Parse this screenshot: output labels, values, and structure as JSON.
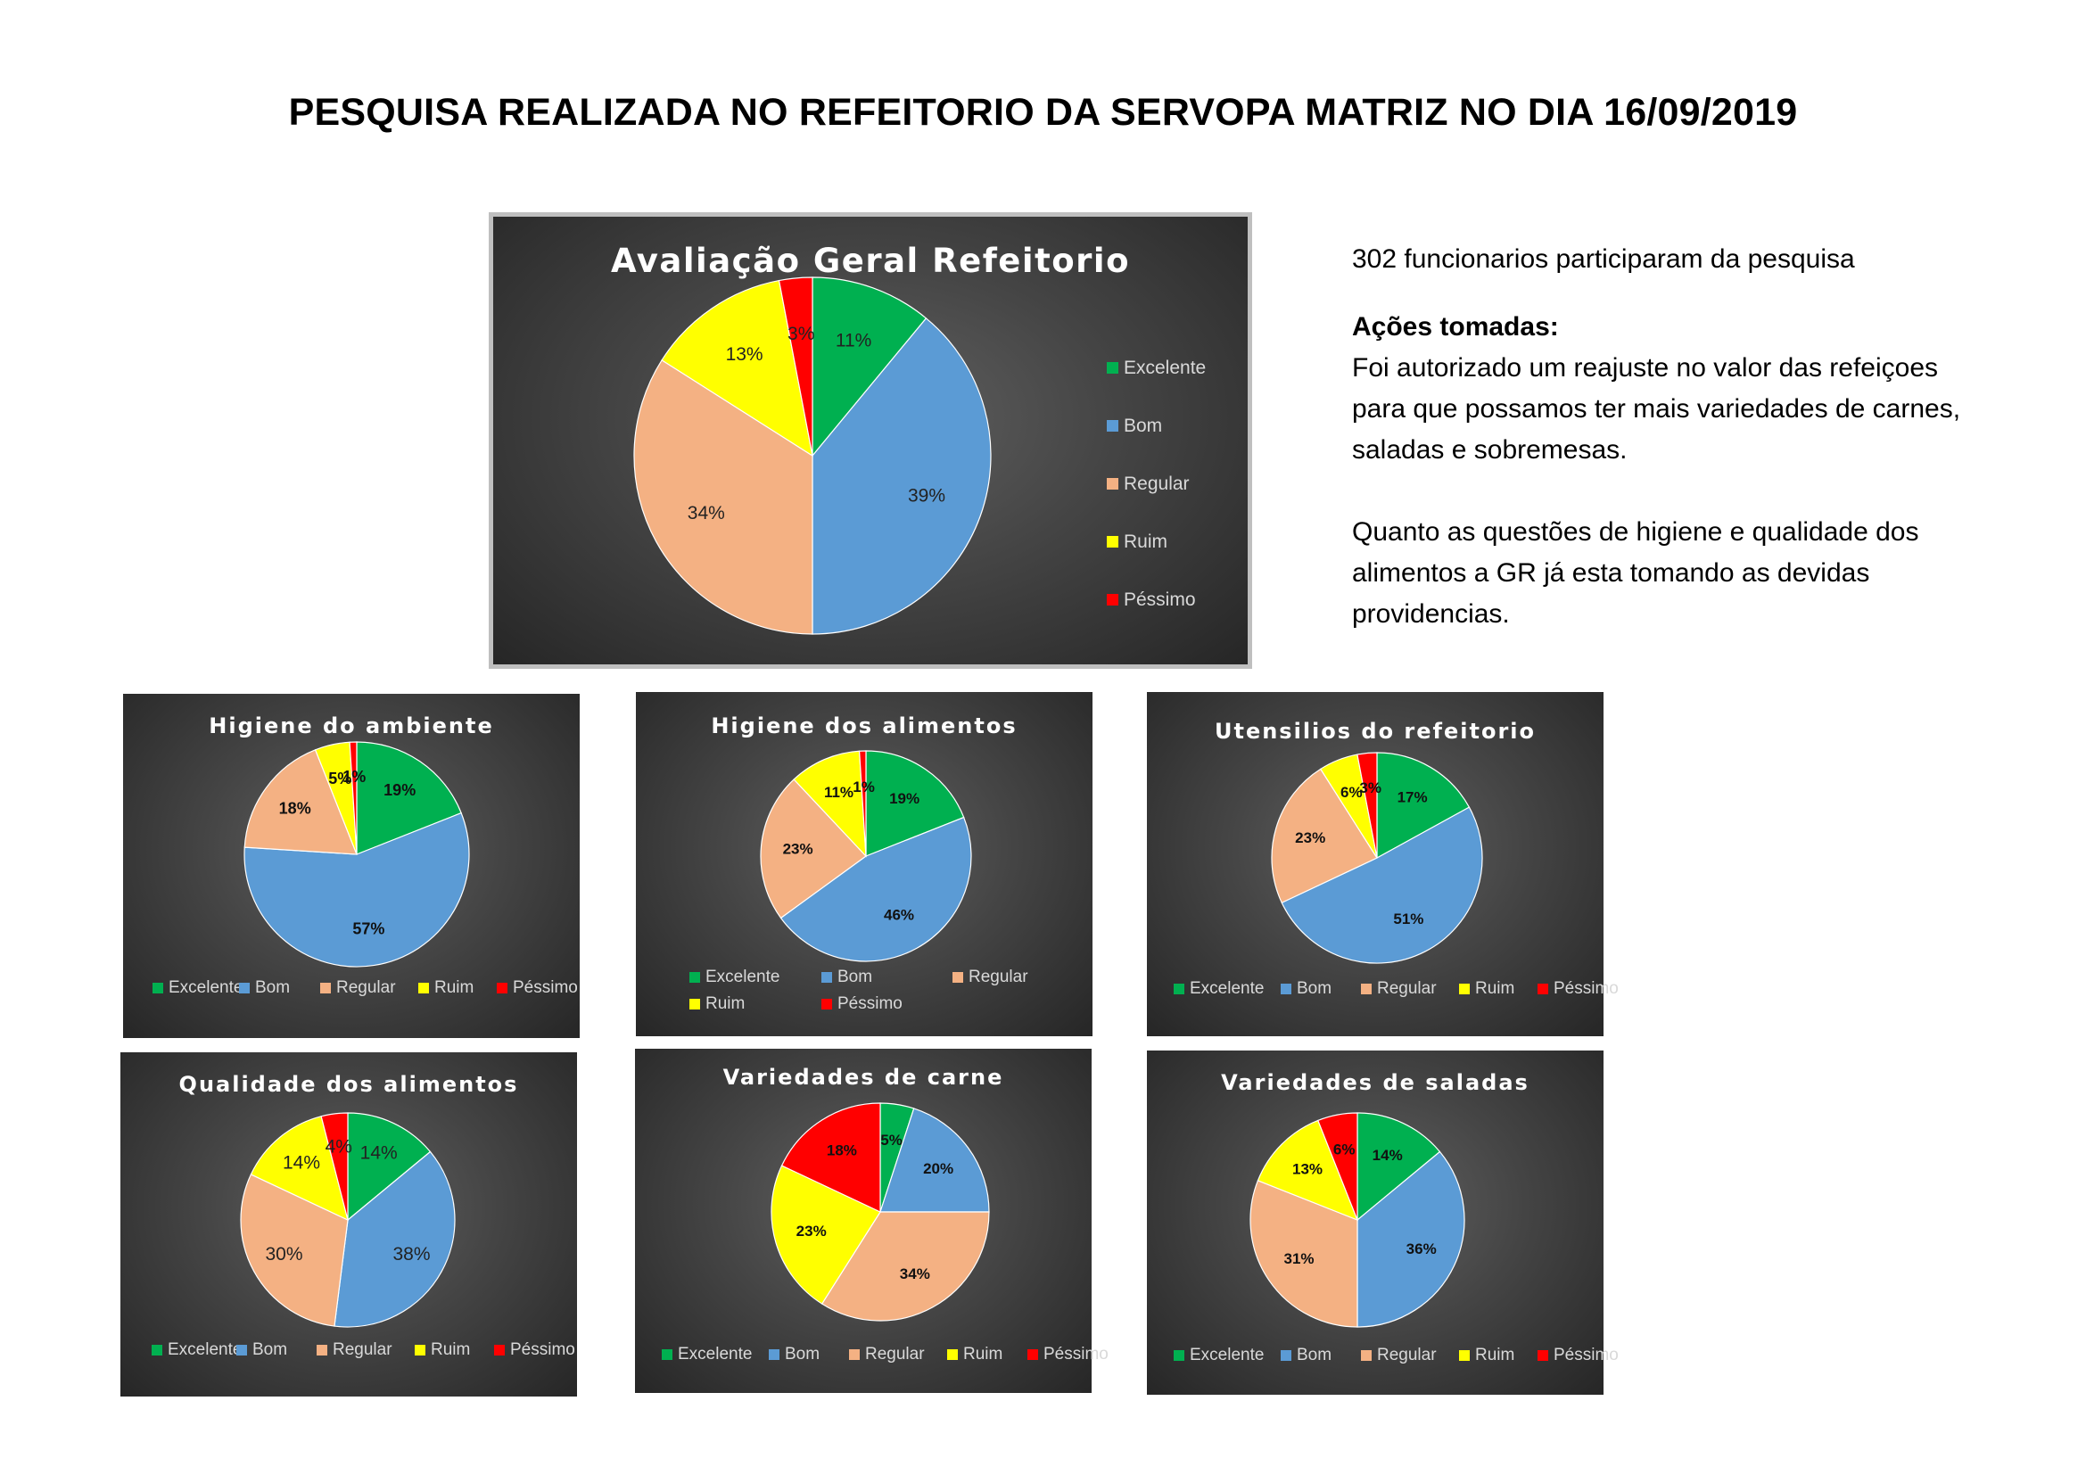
{
  "page": {
    "title": "PESQUISA REALIZADA NO REFEITORIO DA SERVOPA MATRIZ NO DIA 16/09/2019"
  },
  "info": {
    "participants": "302 funcionarios participaram da pesquisa",
    "actions_heading": "Ações tomadas:",
    "actions_text_1": "Foi autorizado um reajuste no valor das refeiçoes para que possamos ter mais variedades de carnes, saladas e sobremesas.",
    "actions_text_2": "Quanto as questões de higiene e qualidade dos alimentos a GR já esta tomando as devidas providencias."
  },
  "colors": {
    "Excelente": "#00b050",
    "Bom": "#5b9bd5",
    "Regular": "#f4b183",
    "Ruim": "#ffff00",
    "Péssimo": "#ff0000"
  },
  "chart_data": [
    {
      "type": "pie",
      "title": "Avaliação Geral Refeitorio",
      "categories": [
        "Excelente",
        "Bom",
        "Regular",
        "Ruim",
        "Péssimo"
      ],
      "values": [
        11,
        39,
        34,
        13,
        3
      ],
      "labels": [
        "11%",
        "39%",
        "34%",
        "13%",
        "3%"
      ],
      "legend": "right"
    },
    {
      "type": "pie",
      "title": "Higiene do ambiente",
      "categories": [
        "Excelente",
        "Bom",
        "Regular",
        "Ruim",
        "Péssimo"
      ],
      "values": [
        19,
        57,
        18,
        5,
        1
      ],
      "labels": [
        "19%",
        "57%",
        "18%",
        "5%",
        "1%"
      ],
      "legend": "bottom"
    },
    {
      "type": "pie",
      "title": "Higiene dos alimentos",
      "categories": [
        "Excelente",
        "Bom",
        "Regular",
        "Ruim",
        "Péssimo"
      ],
      "values": [
        19,
        46,
        23,
        11,
        1
      ],
      "labels": [
        "19%",
        "46%",
        "23%",
        "11%",
        "1%"
      ],
      "legend": "bottom"
    },
    {
      "type": "pie",
      "title": "Utensilios do refeitorio",
      "categories": [
        "Excelente",
        "Bom",
        "Regular",
        "Ruim",
        "Péssimo"
      ],
      "values": [
        17,
        51,
        23,
        6,
        3
      ],
      "labels": [
        "17%",
        "51%",
        "23%",
        "6%",
        "3%"
      ],
      "legend": "bottom"
    },
    {
      "type": "pie",
      "title": "Qualidade dos alimentos",
      "categories": [
        "Excelente",
        "Bom",
        "Regular",
        "Ruim",
        "Péssimo"
      ],
      "values": [
        14,
        38,
        30,
        14,
        4
      ],
      "labels": [
        "14%",
        "38%",
        "30%",
        "14%",
        "4%"
      ],
      "legend": "bottom"
    },
    {
      "type": "pie",
      "title": "Variedades de carne",
      "categories": [
        "Excelente",
        "Bom",
        "Regular",
        "Ruim",
        "Péssimo"
      ],
      "values": [
        5,
        20,
        34,
        23,
        18
      ],
      "labels": [
        "5%",
        "20%",
        "34%",
        "23%",
        "18%"
      ],
      "legend": "bottom"
    },
    {
      "type": "pie",
      "title": "Variedades de saladas",
      "categories": [
        "Excelente",
        "Bom",
        "Regular",
        "Ruim",
        "Péssimo"
      ],
      "values": [
        14,
        36,
        31,
        13,
        6
      ],
      "labels": [
        "14%",
        "36%",
        "31%",
        "13%",
        "6%"
      ],
      "legend": "bottom"
    }
  ]
}
